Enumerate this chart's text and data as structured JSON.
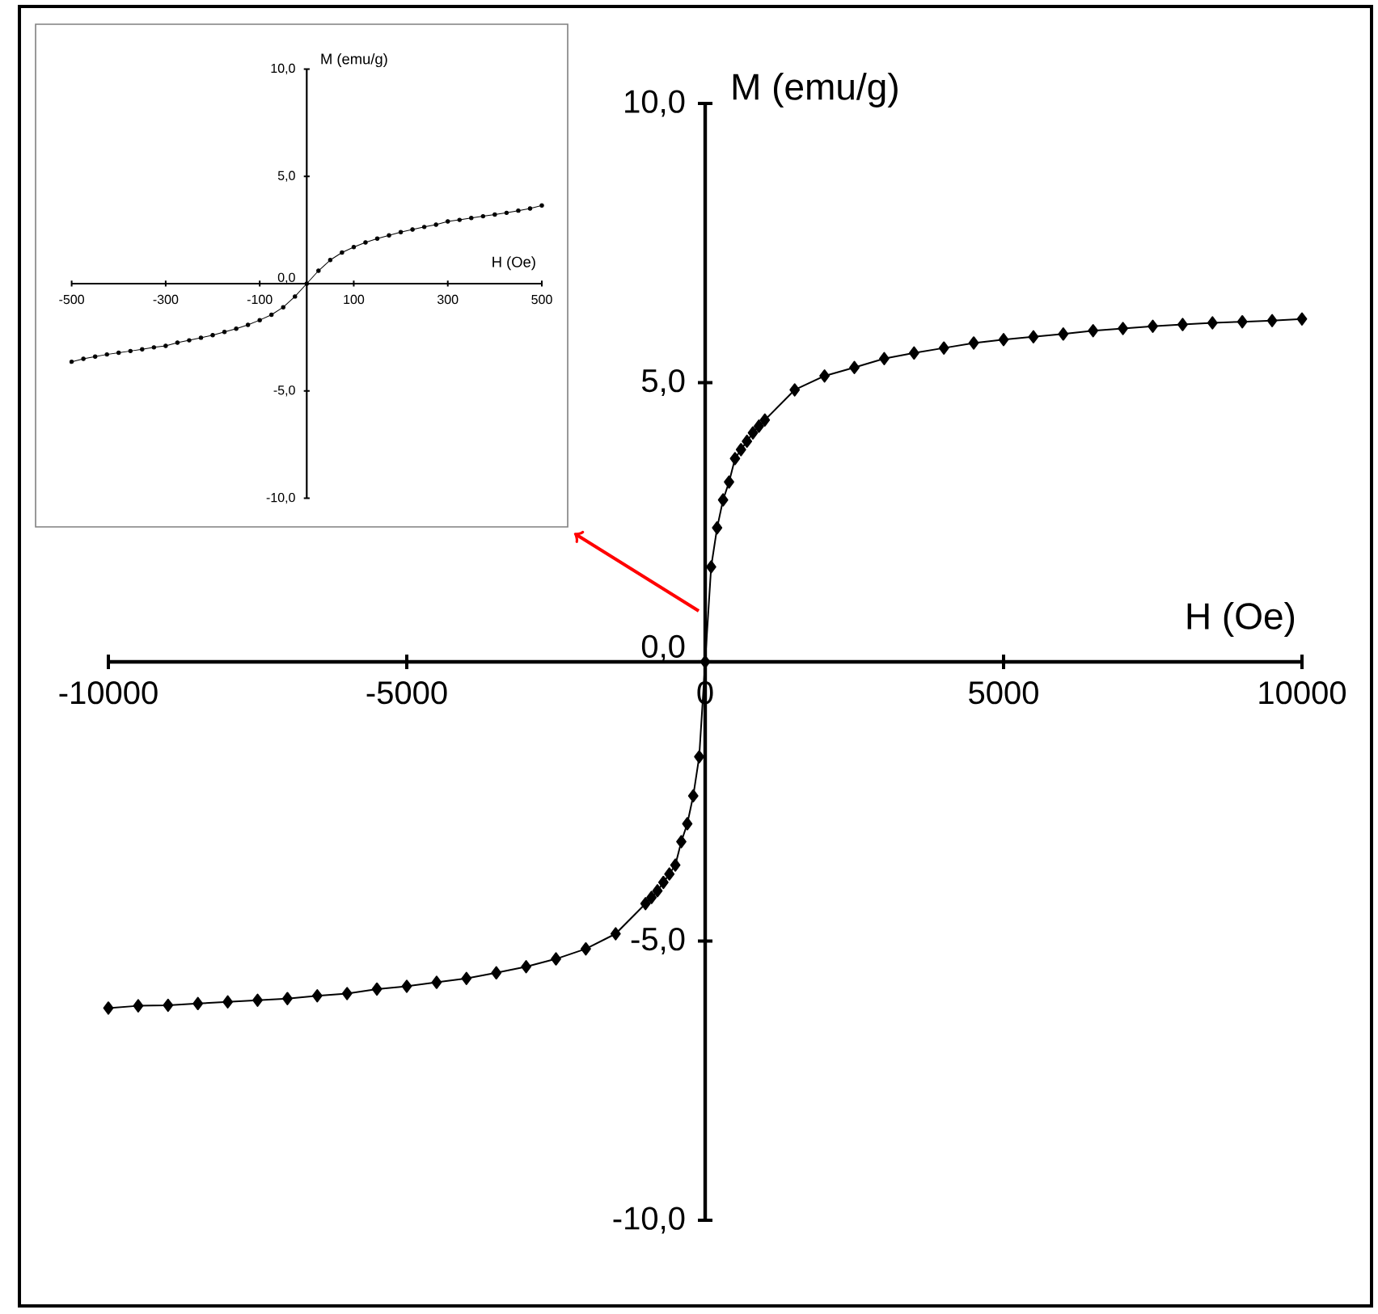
{
  "chart_data": [
    {
      "type": "line",
      "xlabel": "H (Oe)",
      "ylabel": "M (emu/g)",
      "marker": "diamond",
      "x": [
        -10000,
        -9500,
        -9000,
        -8500,
        -8000,
        -7500,
        -7000,
        -6500,
        -6000,
        -5500,
        -5000,
        -4500,
        -4000,
        -3500,
        -3000,
        -2500,
        -2000,
        -1500,
        -1000,
        -900,
        -800,
        -700,
        -600,
        -500,
        -400,
        -300,
        -200,
        -100,
        0,
        100,
        200,
        300,
        400,
        500,
        600,
        700,
        800,
        900,
        1000,
        1500,
        2000,
        2500,
        3000,
        3500,
        4000,
        4500,
        5000,
        5500,
        6000,
        6500,
        7000,
        7500,
        8000,
        8500,
        9000,
        9500,
        10000
      ],
      "series": [
        {
          "color": "#000000",
          "values": [
            -6.2,
            -6.16,
            -6.15,
            -6.12,
            -6.09,
            -6.06,
            -6.03,
            -5.98,
            -5.94,
            -5.86,
            -5.81,
            -5.74,
            -5.67,
            -5.57,
            -5.46,
            -5.32,
            -5.14,
            -4.87,
            -4.33,
            -4.22,
            -4.1,
            -3.95,
            -3.8,
            -3.64,
            -3.22,
            -2.9,
            -2.4,
            -1.7,
            0,
            1.7,
            2.4,
            2.9,
            3.22,
            3.64,
            3.8,
            3.95,
            4.1,
            4.22,
            4.33,
            4.87,
            5.12,
            5.27,
            5.43,
            5.53,
            5.62,
            5.71,
            5.77,
            5.82,
            5.87,
            5.93,
            5.97,
            6.01,
            6.04,
            6.07,
            6.09,
            6.11,
            6.14
          ]
        }
      ],
      "xlim": [
        -10000,
        10000
      ],
      "ylim": [
        -10,
        10
      ],
      "xticks": [
        -10000,
        -5000,
        0,
        5000,
        10000
      ],
      "yticks": [
        {
          "value": -10,
          "label": "-10,0"
        },
        {
          "value": -5,
          "label": "-5,0"
        },
        {
          "value": 0,
          "label": "0,0"
        },
        {
          "value": 5,
          "label": "5,0"
        },
        {
          "value": 10,
          "label": "10,0"
        }
      ]
    },
    {
      "type": "line",
      "xlabel": "H (Oe)",
      "ylabel": "M (emu/g)",
      "marker": "circle",
      "x": [
        -500,
        -475,
        -450,
        -425,
        -400,
        -375,
        -350,
        -325,
        -300,
        -275,
        -250,
        -225,
        -200,
        -175,
        -150,
        -125,
        -100,
        -75,
        -50,
        -25,
        0,
        25,
        50,
        75,
        100,
        125,
        150,
        175,
        200,
        225,
        250,
        275,
        300,
        325,
        350,
        375,
        400,
        425,
        450,
        475,
        500
      ],
      "series": [
        {
          "color": "#000000",
          "values": [
            -3.64,
            -3.5,
            -3.4,
            -3.3,
            -3.22,
            -3.14,
            -3.06,
            -2.97,
            -2.9,
            -2.75,
            -2.64,
            -2.52,
            -2.4,
            -2.25,
            -2.1,
            -1.92,
            -1.7,
            -1.45,
            -1.1,
            -0.6,
            0,
            0.6,
            1.1,
            1.45,
            1.7,
            1.92,
            2.1,
            2.25,
            2.4,
            2.52,
            2.64,
            2.75,
            2.9,
            2.97,
            3.06,
            3.14,
            3.22,
            3.3,
            3.4,
            3.5,
            3.64
          ]
        }
      ],
      "xlim": [
        -500,
        500
      ],
      "ylim": [
        -10,
        10
      ],
      "xticks": [
        -500,
        -300,
        -100,
        100,
        300,
        500
      ],
      "yticks": [
        {
          "value": -10,
          "label": "-10,0"
        },
        {
          "value": -5,
          "label": "-5,0"
        },
        {
          "value": 0,
          "label": "0,0"
        },
        {
          "value": 5,
          "label": "5,0"
        },
        {
          "value": 10,
          "label": "10,0"
        }
      ]
    }
  ]
}
